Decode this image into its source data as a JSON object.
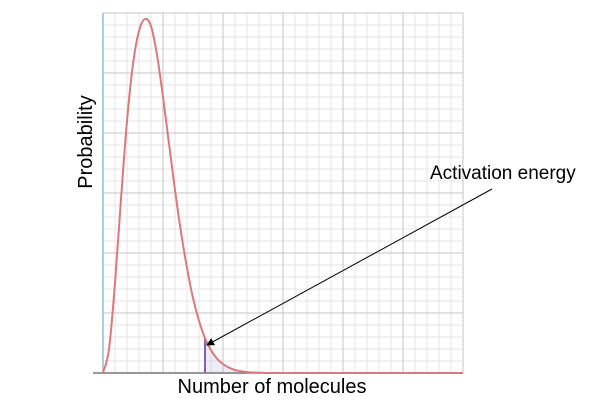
{
  "chart_data": {
    "type": "line",
    "title": "",
    "xlabel": "Number of molecules",
    "ylabel": "Probability",
    "xlim": [
      0,
      12
    ],
    "ylim": [
      0,
      6
    ],
    "grid": true,
    "x_ticks": [
      0,
      2,
      4,
      6,
      8,
      10,
      12
    ],
    "y_ticks": [
      0,
      1,
      2,
      3,
      4,
      5,
      6
    ],
    "series": [
      {
        "color": "#d9797d",
        "points": [
          [
            0.0,
            0.0
          ],
          [
            0.2,
            0.4
          ],
          [
            0.4,
            1.5
          ],
          [
            0.6,
            2.9
          ],
          [
            0.8,
            4.2
          ],
          [
            1.0,
            5.15
          ],
          [
            1.2,
            5.7
          ],
          [
            1.4,
            5.9
          ],
          [
            1.6,
            5.78
          ],
          [
            1.8,
            5.3
          ],
          [
            2.0,
            4.6
          ],
          [
            2.2,
            3.82
          ],
          [
            2.4,
            3.05
          ],
          [
            2.6,
            2.35
          ],
          [
            2.8,
            1.75
          ],
          [
            3.0,
            1.25
          ],
          [
            3.2,
            0.87
          ],
          [
            3.4,
            0.58
          ],
          [
            3.6,
            0.38
          ],
          [
            3.8,
            0.24
          ],
          [
            4.0,
            0.15
          ],
          [
            4.2,
            0.09
          ],
          [
            4.4,
            0.05
          ],
          [
            4.6,
            0.03
          ],
          [
            4.8,
            0.015
          ],
          [
            5.0,
            0.008
          ],
          [
            5.4,
            0.003
          ],
          [
            6.0,
            0.0
          ],
          [
            12.0,
            0.0
          ]
        ]
      }
    ],
    "threshold": {
      "x": 3.4,
      "color": "#7b62b8"
    },
    "annotations": [
      {
        "text": "Activation energy",
        "target": [
          3.4,
          0.45
        ]
      }
    ],
    "colors": {
      "curve": "#d9797d",
      "threshold": "#7b62b8",
      "y_axis": "#7fc3e0",
      "grid_major": "#c4c4c4",
      "grid_minor": "#e6e6e6",
      "baseline": "#777777"
    }
  }
}
